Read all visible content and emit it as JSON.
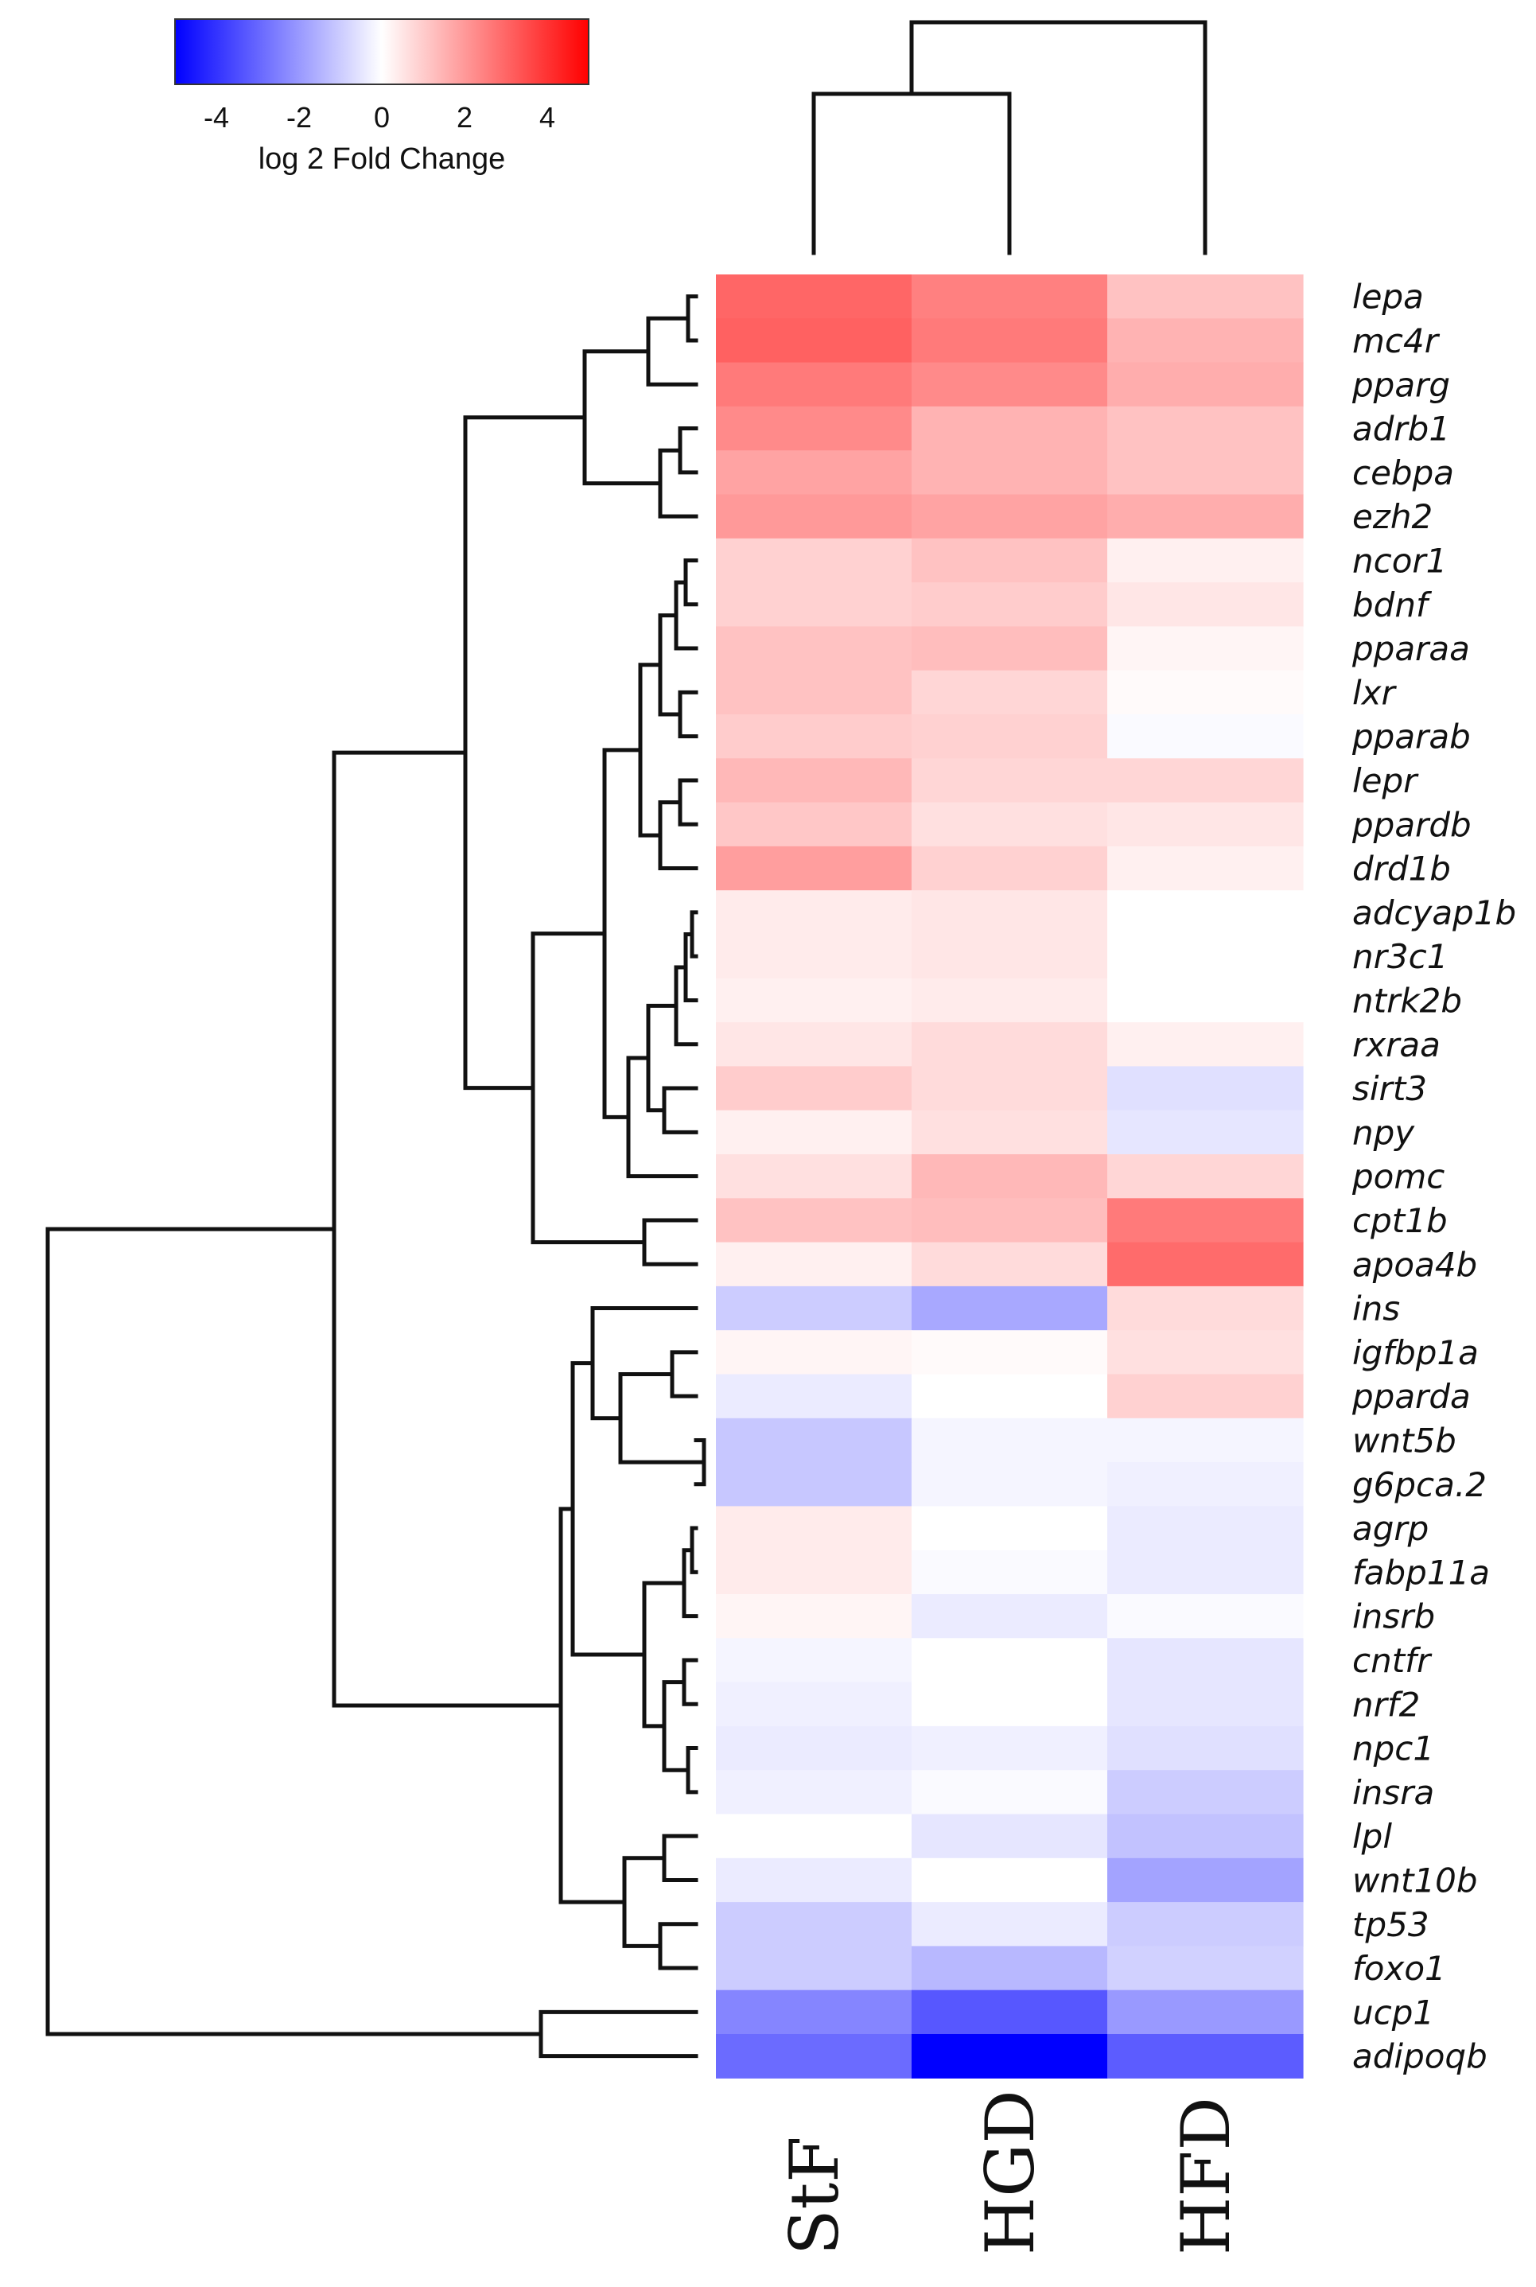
{
  "chart_data": {
    "type": "heatmap",
    "title": "",
    "colorbar": {
      "label": "log 2 Fold Change",
      "ticks": [
        "-4",
        "-2",
        "0",
        "2",
        "4"
      ],
      "range": [
        -5,
        5
      ],
      "colors": {
        "low": "#0000ff",
        "mid": "#ffffff",
        "high": "#ff0000"
      }
    },
    "columns": [
      "StF",
      "HGD",
      "HFD"
    ],
    "rows": [
      "lepa",
      "mc4r",
      "pparg",
      "adrb1",
      "cebpa",
      "ezh2",
      "ncor1",
      "bdnf",
      "pparaa",
      "lxr",
      "pparab",
      "lepr",
      "ppardb",
      "drd1b",
      "adcyap1b",
      "nr3c1",
      "ntrk2b",
      "rxraa",
      "sirt3",
      "npy",
      "pomc",
      "cpt1b",
      "apoa4b",
      "ins",
      "igfbp1a",
      "pparda",
      "wnt5b",
      "g6pca.2",
      "agrp",
      "fabp11a",
      "insrb",
      "cntfr",
      "nrf2",
      "npc1",
      "insra",
      "lpl",
      "wnt10b",
      "tp53",
      "foxo1",
      "ucp1",
      "adipoqb"
    ],
    "values": [
      [
        3.0,
        2.5,
        1.2
      ],
      [
        3.1,
        2.6,
        1.5
      ],
      [
        2.6,
        2.3,
        1.6
      ],
      [
        2.3,
        1.5,
        1.2
      ],
      [
        1.8,
        1.5,
        1.2
      ],
      [
        2.0,
        1.8,
        1.6
      ],
      [
        0.9,
        1.2,
        0.3
      ],
      [
        0.9,
        1.0,
        0.5
      ],
      [
        1.2,
        1.3,
        0.2
      ],
      [
        1.2,
        0.8,
        0.1
      ],
      [
        1.0,
        0.9,
        -0.1
      ],
      [
        1.4,
        0.8,
        0.8
      ],
      [
        1.1,
        0.6,
        0.5
      ],
      [
        1.9,
        0.9,
        0.3
      ],
      [
        0.4,
        0.5,
        0.0
      ],
      [
        0.4,
        0.5,
        0.0
      ],
      [
        0.3,
        0.4,
        0.0
      ],
      [
        0.5,
        0.7,
        0.3
      ],
      [
        1.0,
        0.7,
        -0.6
      ],
      [
        0.3,
        0.6,
        -0.5
      ],
      [
        0.6,
        1.4,
        0.8
      ],
      [
        1.2,
        1.3,
        2.6
      ],
      [
        0.3,
        0.7,
        2.9
      ],
      [
        -1.0,
        -1.7,
        0.7
      ],
      [
        0.2,
        0.1,
        0.6
      ],
      [
        -0.4,
        0.0,
        0.9
      ],
      [
        -1.1,
        -0.2,
        -0.2
      ],
      [
        -1.1,
        -0.2,
        -0.3
      ],
      [
        0.4,
        0.0,
        -0.4
      ],
      [
        0.4,
        -0.1,
        -0.4
      ],
      [
        0.2,
        -0.4,
        -0.1
      ],
      [
        -0.2,
        0.0,
        -0.5
      ],
      [
        -0.3,
        0.0,
        -0.5
      ],
      [
        -0.4,
        -0.3,
        -0.6
      ],
      [
        -0.3,
        -0.1,
        -1.0
      ],
      [
        0.0,
        -0.5,
        -1.2
      ],
      [
        -0.4,
        0.0,
        -1.8
      ],
      [
        -1.0,
        -0.4,
        -1.0
      ],
      [
        -1.0,
        -1.4,
        -0.9
      ],
      [
        -2.4,
        -3.3,
        -2.0
      ],
      [
        -2.9,
        -5.0,
        -3.2
      ]
    ]
  }
}
